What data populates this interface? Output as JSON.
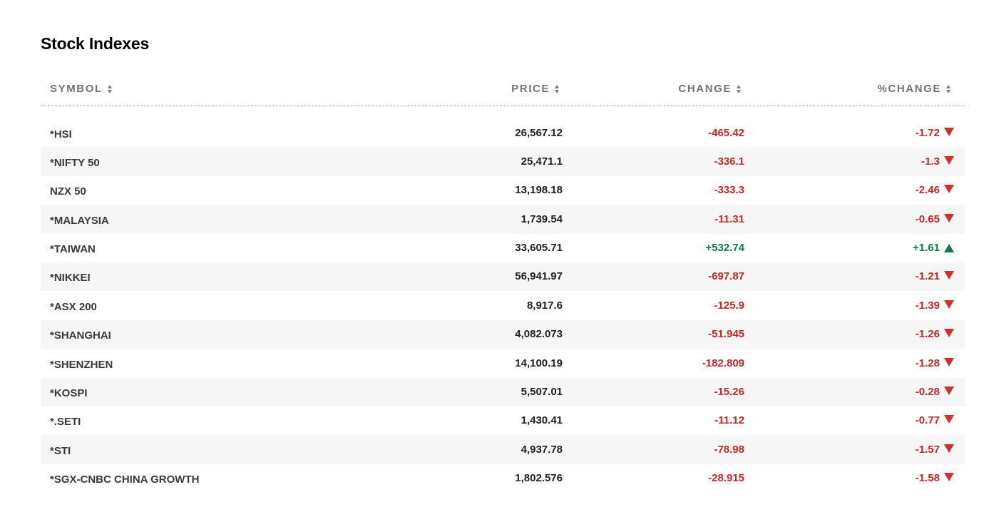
{
  "title": "Stock Indexes",
  "colors": {
    "negative": "#c62828",
    "positive": "#0b8043",
    "header_text": "#747474",
    "row_alt_bg": "#f6f6f6"
  },
  "columns": {
    "symbol": "SYMBOL",
    "price": "PRICE",
    "change": "CHANGE",
    "pct_change": "%CHANGE"
  },
  "rows": [
    {
      "symbol": "*HSI",
      "price": "26,567.12",
      "change": "-465.42",
      "pct": "-1.72",
      "direction": "down"
    },
    {
      "symbol": "*NIFTY 50",
      "price": "25,471.1",
      "change": "-336.1",
      "pct": "-1.3",
      "direction": "down"
    },
    {
      "symbol": "NZX 50",
      "price": "13,198.18",
      "change": "-333.3",
      "pct": "-2.46",
      "direction": "down"
    },
    {
      "symbol": "*MALAYSIA",
      "price": "1,739.54",
      "change": "-11.31",
      "pct": "-0.65",
      "direction": "down"
    },
    {
      "symbol": "*TAIWAN",
      "price": "33,605.71",
      "change": "+532.74",
      "pct": "+1.61",
      "direction": "up"
    },
    {
      "symbol": "*NIKKEI",
      "price": "56,941.97",
      "change": "-697.87",
      "pct": "-1.21",
      "direction": "down"
    },
    {
      "symbol": "*ASX 200",
      "price": "8,917.6",
      "change": "-125.9",
      "pct": "-1.39",
      "direction": "down"
    },
    {
      "symbol": "*SHANGHAI",
      "price": "4,082.073",
      "change": "-51.945",
      "pct": "-1.26",
      "direction": "down"
    },
    {
      "symbol": "*SHENZHEN",
      "price": "14,100.19",
      "change": "-182.809",
      "pct": "-1.28",
      "direction": "down"
    },
    {
      "symbol": "*KOSPI",
      "price": "5,507.01",
      "change": "-15.26",
      "pct": "-0.28",
      "direction": "down"
    },
    {
      "symbol": "*.SETI",
      "price": "1,430.41",
      "change": "-11.12",
      "pct": "-0.77",
      "direction": "down"
    },
    {
      "symbol": "*STI",
      "price": "4,937.78",
      "change": "-78.98",
      "pct": "-1.57",
      "direction": "down"
    },
    {
      "symbol": "*SGX-CNBC CHINA GROWTH",
      "price": "1,802.576",
      "change": "-28.915",
      "pct": "-1.58",
      "direction": "down"
    }
  ]
}
